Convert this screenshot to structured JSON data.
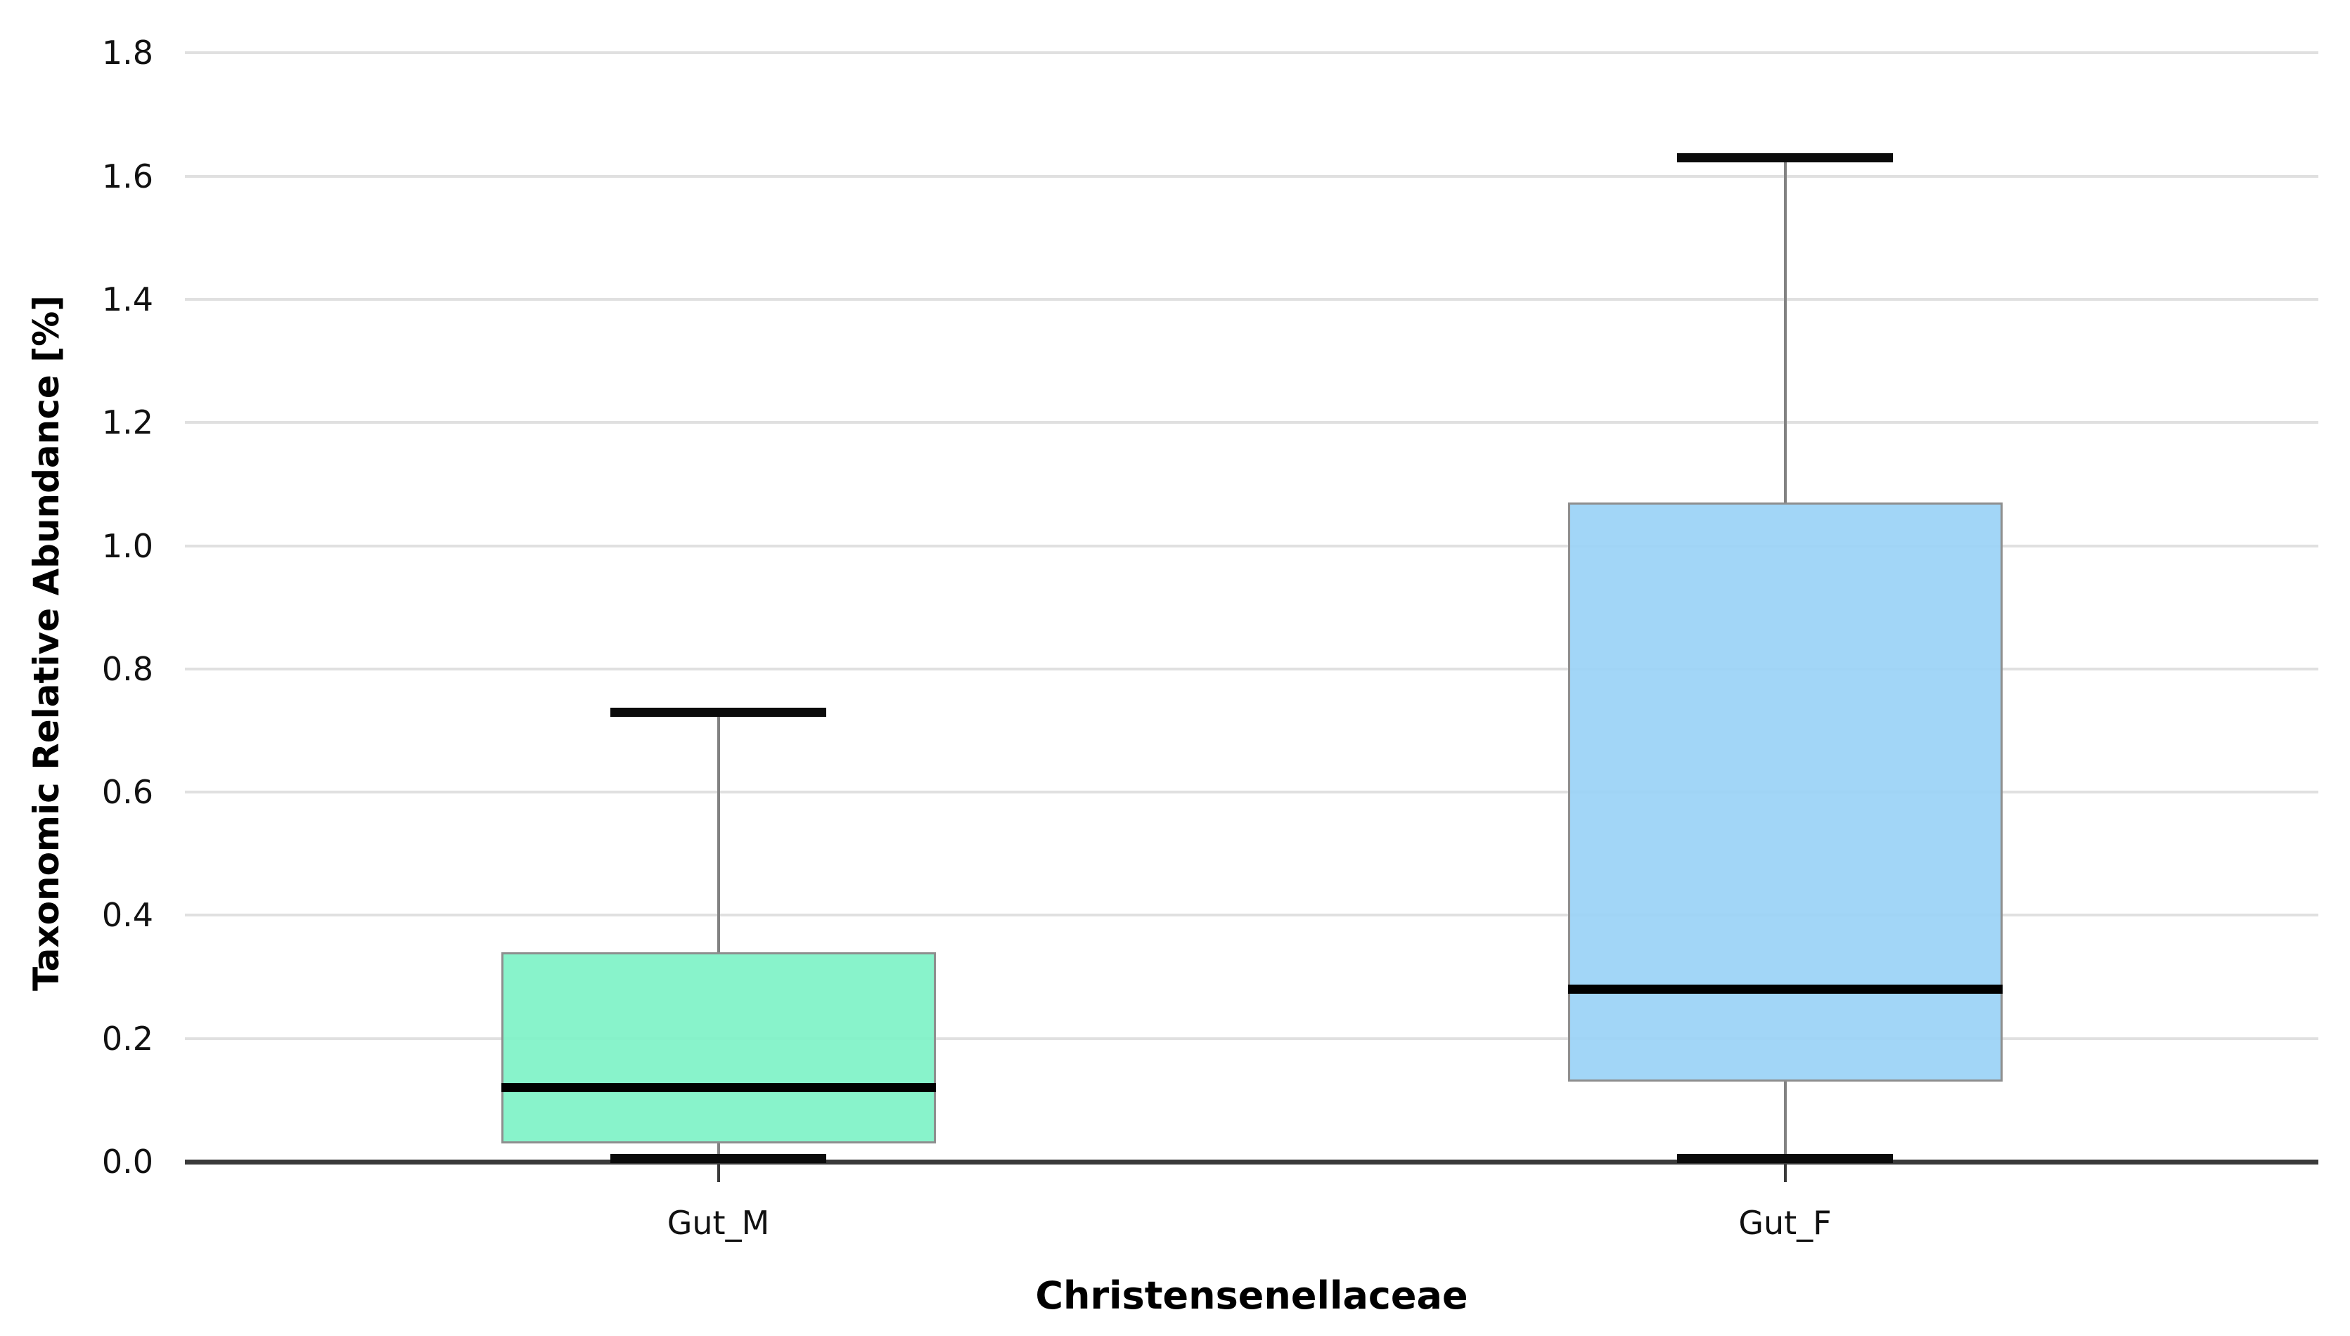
{
  "chart_data": {
    "type": "box",
    "title": "",
    "xlabel": "Christensenellaceae",
    "ylabel": "Taxonomic Relative Abundance [%]",
    "ylim": [
      0.0,
      1.8
    ],
    "ytick_step": 0.2,
    "ytick_labels": [
      "0.0",
      "0.2",
      "0.4",
      "0.6",
      "0.8",
      "1.0",
      "1.2",
      "1.4",
      "1.6",
      "1.8"
    ],
    "grid": true,
    "legend": "none",
    "categories": [
      "Gut_M",
      "Gut_F"
    ],
    "series": [
      {
        "name": "Gut_M",
        "min": 0.005,
        "q1": 0.03,
        "median": 0.12,
        "q3": 0.34,
        "max": 0.73,
        "fill_color": "#7FF2C7"
      },
      {
        "name": "Gut_F",
        "min": 0.005,
        "q1": 0.13,
        "median": 0.28,
        "q3": 1.07,
        "max": 1.63,
        "fill_color": "#9BD3F6"
      }
    ],
    "colors": {
      "gridline": "#E0E0E0",
      "axis_line": "#3A3A3A",
      "box_border": "#8E8E8E",
      "whisker": "#828282",
      "median": "#000000",
      "cap": "#0B0B0B",
      "text": "#111111"
    }
  }
}
